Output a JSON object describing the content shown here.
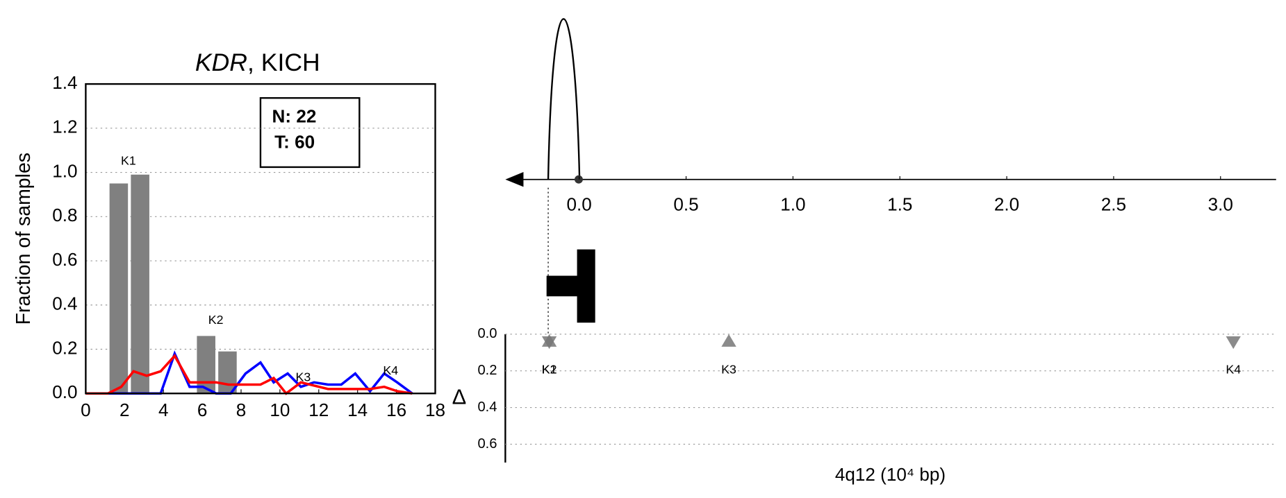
{
  "chart_data": [
    {
      "type": "bar",
      "title_gene": "KDR",
      "title_rest": ", KICH",
      "ylabel": "Fraction of samples",
      "xlim": [
        0,
        18
      ],
      "xticks": [
        0,
        2,
        4,
        6,
        8,
        10,
        12,
        14,
        16,
        18
      ],
      "ylim": [
        0,
        1.4
      ],
      "yticks": [
        {
          "value": 0,
          "label": "0.0"
        },
        0.2,
        0.4,
        0.6,
        0.8,
        {
          "value": 1,
          "label": "1.0"
        },
        1.2,
        1.4
      ],
      "grid": true,
      "box_text": [
        "N: 22",
        "T: 60"
      ],
      "bars": {
        "color": "#808080",
        "x": [
          1.7,
          2.8,
          6.2,
          7.3
        ],
        "values": [
          0.95,
          0.99,
          0.26,
          0.19
        ]
      },
      "lines": [
        {
          "color": "#0000ff",
          "x": [
            0,
            3.86,
            4.58,
            5.35,
            6.03,
            6.71,
            7.47,
            8.23,
            9.0,
            9.68,
            10.4,
            11.08,
            11.76,
            12.48,
            13.16,
            13.88,
            14.64,
            15.37,
            16.04,
            16.81
          ],
          "values": [
            0,
            0,
            0.18,
            0.03,
            0.03,
            0,
            0,
            0.09,
            0.14,
            0.05,
            0.09,
            0.03,
            0.05,
            0.04,
            0.04,
            0.09,
            0.01,
            0.09,
            0.05,
            0
          ]
        },
        {
          "color": "#ff0000",
          "x": [
            0,
            1.15,
            1.83,
            2.46,
            3.14,
            3.86,
            4.58,
            5.35,
            6.71,
            7.35,
            9.0,
            9.68,
            10.32,
            11.08,
            12.48,
            13.41,
            14.64,
            15.37,
            16.04,
            16.81
          ],
          "values": [
            0,
            0,
            0.03,
            0.1,
            0.08,
            0.1,
            0.17,
            0.05,
            0.05,
            0.04,
            0.04,
            0.07,
            0,
            0.05,
            0.02,
            0.02,
            0.02,
            0.03,
            0.01,
            0
          ]
        }
      ],
      "annotations": [
        {
          "text": "K1",
          "x": 2.2,
          "y": 1.05
        },
        {
          "text": "K2",
          "x": 6.7,
          "y": 0.33
        },
        {
          "text": "K3",
          "x": 11.2,
          "y": 0.07
        },
        {
          "text": "K4",
          "x": 15.7,
          "y": 0.1
        }
      ]
    },
    {
      "type": "scatter",
      "xlabel": "4q12 (10⁴ bp)",
      "ylabel": "Δ",
      "xlim": [
        -0.28,
        3.26
      ],
      "xticks": [
        {
          "value": 0,
          "label": "0.0"
        },
        0.5,
        {
          "value": 1,
          "label": "1.0"
        },
        1.5,
        {
          "value": 2,
          "label": "2.0"
        },
        2.5,
        {
          "value": 3,
          "label": "3.0"
        }
      ],
      "ylim": [
        0,
        0.7
      ],
      "yticks": [
        {
          "value": 0,
          "label": "0.0"
        },
        0.2,
        0.4,
        0.6
      ],
      "grid": true,
      "color": "#777777",
      "points": [
        {
          "label": "K1",
          "x": -0.14,
          "y": 0.04,
          "marker": "down"
        },
        {
          "label": "K2",
          "x": -0.14,
          "y": 0.04,
          "marker": "up"
        },
        {
          "label": "K3",
          "x": 0.7,
          "y": 0.04,
          "marker": "up"
        },
        {
          "label": "K4",
          "x": 3.06,
          "y": 0.04,
          "marker": "down"
        }
      ]
    }
  ]
}
